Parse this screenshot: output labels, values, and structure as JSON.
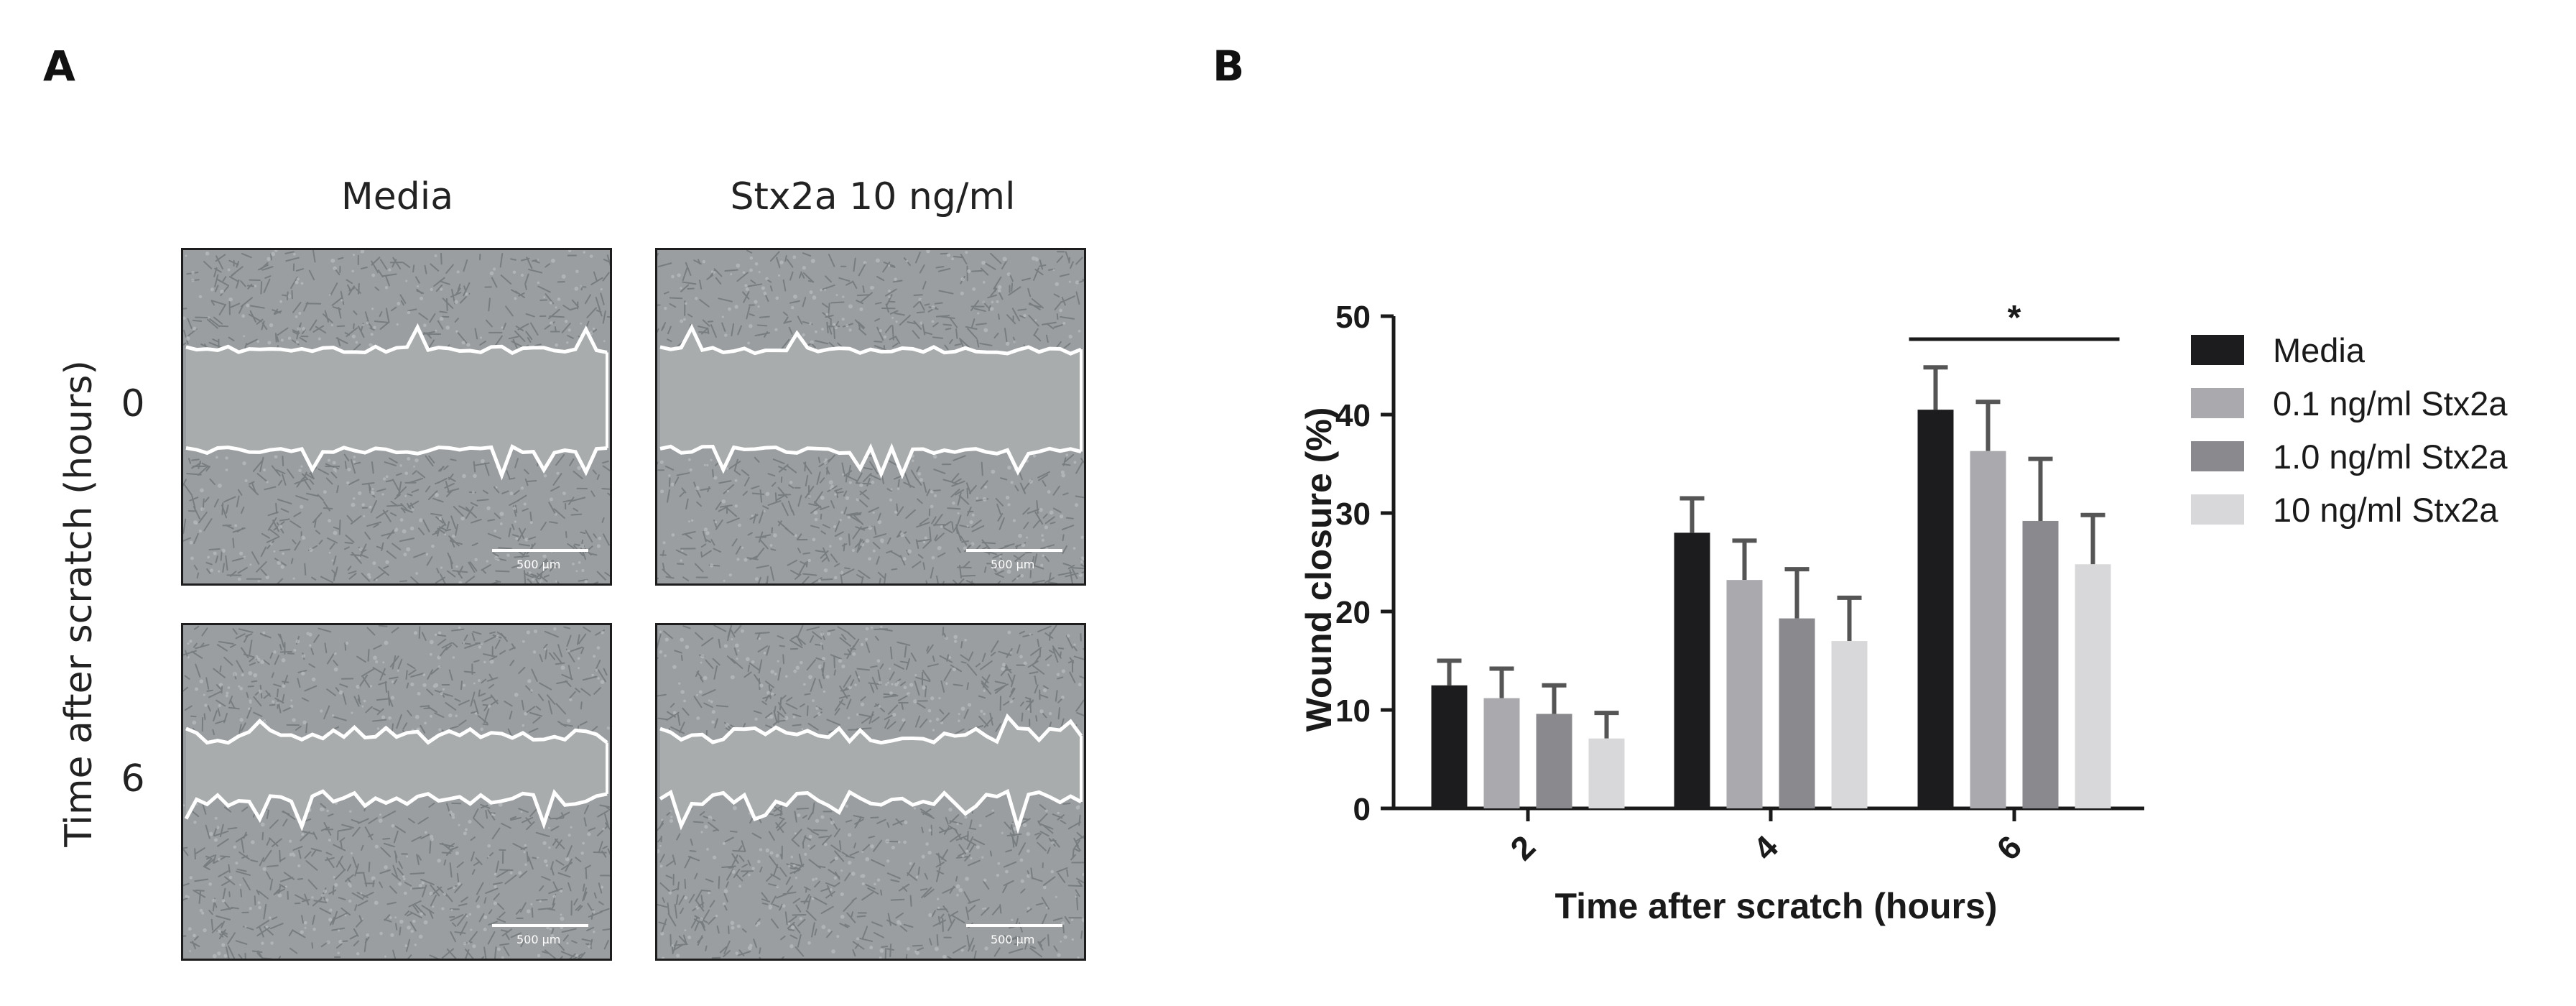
{
  "panel_a": {
    "letter": "A",
    "column_labels": [
      "Media",
      "Stx2a 10 ng/ml"
    ],
    "row_labels": [
      "0",
      "6"
    ],
    "y_axis_label": "Time after scratch (hours)",
    "scale_bar_text": "500 µm"
  },
  "panel_b": {
    "letter": "B",
    "significance_marker": "*"
  },
  "colors": {
    "Media": "#1c1c1e",
    "0.1 ng/ml Stx2a": "#a9a9ae",
    "1.0 ng/ml Stx2a": "#8a8a8e",
    "10 ng/ml Stx2a": "#d8d8da",
    "error_bar": "#555555"
  },
  "chart_data": {
    "type": "bar",
    "title": "",
    "xlabel": "Time after scratch (hours)",
    "ylabel": "Wound closure (%)",
    "categories": [
      "2",
      "4",
      "6"
    ],
    "ylim": [
      0,
      50
    ],
    "yticks": [
      0,
      10,
      20,
      30,
      40,
      50
    ],
    "series": [
      {
        "name": "Media",
        "values": [
          12.5,
          28.0,
          40.5
        ],
        "errors": [
          2.5,
          3.5,
          4.3
        ]
      },
      {
        "name": "0.1 ng/ml Stx2a",
        "values": [
          11.2,
          23.2,
          36.3
        ],
        "errors": [
          3.0,
          4.0,
          5.0
        ]
      },
      {
        "name": "1.0 ng/ml Stx2a",
        "values": [
          9.6,
          19.3,
          29.2
        ],
        "errors": [
          2.9,
          5.0,
          6.3
        ]
      },
      {
        "name": "10 ng/ml Stx2a",
        "values": [
          7.1,
          17.0,
          24.8
        ],
        "errors": [
          2.6,
          4.4,
          5.0
        ]
      }
    ],
    "annotations": [
      {
        "text": "*",
        "category": "6",
        "from_series": "Media",
        "to_series": "10 ng/ml Stx2a"
      }
    ],
    "legend_position": "right"
  }
}
